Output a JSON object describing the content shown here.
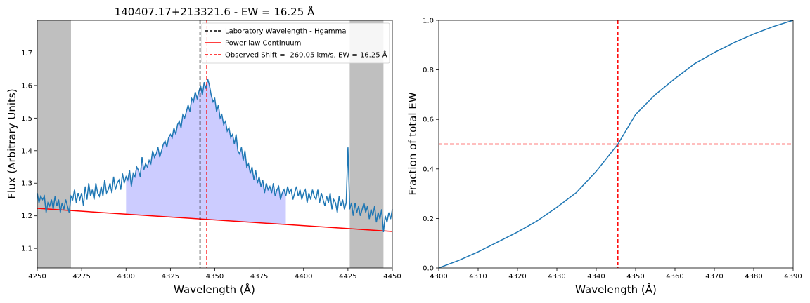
{
  "chart_data": [
    {
      "type": "line",
      "title": "140407.17+213321.6 - EW = 16.25 Å",
      "xlabel": "Wavelength (Å)",
      "ylabel": "Flux (Arbitrary Units)",
      "xlim": [
        4250,
        4450
      ],
      "ylim": [
        1.04,
        1.8
      ],
      "xticks": [
        4250,
        4275,
        4300,
        4325,
        4350,
        4375,
        4400,
        4425,
        4450
      ],
      "yticks": [
        1.1,
        1.2,
        1.3,
        1.4,
        1.5,
        1.6,
        1.7
      ],
      "grid": false,
      "legend_position": "top-right",
      "continuum_windows": [
        [
          4250,
          4269
        ],
        [
          4426,
          4445
        ]
      ],
      "shaded_region": [
        4300,
        4390
      ],
      "vlines": [
        {
          "x": 4341.7,
          "color": "#000000",
          "style": "dashed"
        },
        {
          "x": 4345.5,
          "color": "#ff0000",
          "style": "dashed"
        }
      ],
      "continuum_line": {
        "x": [
          4250,
          4450
        ],
        "y": [
          1.223,
          1.152
        ],
        "color": "#ff0000"
      },
      "spectrum": {
        "color": "#1f77b4",
        "x": [
          4250,
          4251,
          4252,
          4253,
          4254,
          4255,
          4256,
          4257,
          4258,
          4259,
          4260,
          4261,
          4262,
          4263,
          4264,
          4265,
          4266,
          4267,
          4268,
          4269,
          4270,
          4271,
          4272,
          4273,
          4274,
          4275,
          4276,
          4277,
          4278,
          4279,
          4280,
          4281,
          4282,
          4283,
          4284,
          4285,
          4286,
          4287,
          4288,
          4289,
          4290,
          4291,
          4292,
          4293,
          4294,
          4295,
          4296,
          4297,
          4298,
          4299,
          4300,
          4301,
          4302,
          4303,
          4304,
          4305,
          4306,
          4307,
          4308,
          4309,
          4310,
          4311,
          4312,
          4313,
          4314,
          4315,
          4316,
          4317,
          4318,
          4319,
          4320,
          4321,
          4322,
          4323,
          4324,
          4325,
          4326,
          4327,
          4328,
          4329,
          4330,
          4331,
          4332,
          4333,
          4334,
          4335,
          4336,
          4337,
          4338,
          4339,
          4340,
          4341,
          4342,
          4343,
          4344,
          4345,
          4346,
          4347,
          4348,
          4349,
          4350,
          4351,
          4352,
          4353,
          4354,
          4355,
          4356,
          4357,
          4358,
          4359,
          4360,
          4361,
          4362,
          4363,
          4364,
          4365,
          4366,
          4367,
          4368,
          4369,
          4370,
          4371,
          4372,
          4373,
          4374,
          4375,
          4376,
          4377,
          4378,
          4379,
          4380,
          4381,
          4382,
          4383,
          4384,
          4385,
          4386,
          4387,
          4388,
          4389,
          4390,
          4391,
          4392,
          4393,
          4394,
          4395,
          4396,
          4397,
          4398,
          4399,
          4400,
          4401,
          4402,
          4403,
          4404,
          4405,
          4406,
          4407,
          4408,
          4409,
          4410,
          4411,
          4412,
          4413,
          4414,
          4415,
          4416,
          4417,
          4418,
          4419,
          4420,
          4421,
          4422,
          4423,
          4424,
          4425,
          4426,
          4427,
          4428,
          4429,
          4430,
          4431,
          4432,
          4433,
          4434,
          4435,
          4436,
          4437,
          4438,
          4439,
          4440,
          4441,
          4442,
          4443,
          4444,
          4445,
          4446,
          4447,
          4448,
          4449,
          4450
        ],
        "y": [
          1.27,
          1.24,
          1.26,
          1.25,
          1.26,
          1.21,
          1.24,
          1.23,
          1.25,
          1.22,
          1.26,
          1.23,
          1.25,
          1.21,
          1.24,
          1.22,
          1.25,
          1.23,
          1.21,
          1.26,
          1.25,
          1.28,
          1.24,
          1.27,
          1.25,
          1.27,
          1.23,
          1.29,
          1.25,
          1.3,
          1.26,
          1.28,
          1.25,
          1.3,
          1.27,
          1.26,
          1.29,
          1.26,
          1.31,
          1.27,
          1.28,
          1.3,
          1.27,
          1.32,
          1.28,
          1.3,
          1.31,
          1.28,
          1.33,
          1.3,
          1.32,
          1.31,
          1.34,
          1.29,
          1.33,
          1.32,
          1.35,
          1.34,
          1.32,
          1.38,
          1.34,
          1.36,
          1.35,
          1.37,
          1.36,
          1.4,
          1.38,
          1.39,
          1.41,
          1.38,
          1.4,
          1.42,
          1.43,
          1.41,
          1.44,
          1.45,
          1.44,
          1.47,
          1.45,
          1.48,
          1.49,
          1.47,
          1.51,
          1.5,
          1.52,
          1.54,
          1.52,
          1.56,
          1.55,
          1.58,
          1.56,
          1.58,
          1.6,
          1.57,
          1.61,
          1.59,
          1.62,
          1.6,
          1.57,
          1.55,
          1.56,
          1.52,
          1.54,
          1.5,
          1.51,
          1.48,
          1.49,
          1.46,
          1.47,
          1.44,
          1.45,
          1.42,
          1.45,
          1.4,
          1.39,
          1.41,
          1.37,
          1.4,
          1.35,
          1.36,
          1.33,
          1.35,
          1.31,
          1.34,
          1.3,
          1.32,
          1.29,
          1.31,
          1.27,
          1.3,
          1.28,
          1.29,
          1.27,
          1.3,
          1.26,
          1.28,
          1.29,
          1.25,
          1.27,
          1.28,
          1.26,
          1.29,
          1.27,
          1.28,
          1.25,
          1.27,
          1.29,
          1.26,
          1.28,
          1.25,
          1.27,
          1.28,
          1.24,
          1.27,
          1.25,
          1.28,
          1.26,
          1.25,
          1.28,
          1.24,
          1.27,
          1.25,
          1.23,
          1.26,
          1.24,
          1.27,
          1.22,
          1.25,
          1.24,
          1.21,
          1.26,
          1.23,
          1.25,
          1.22,
          1.24,
          1.41,
          1.22,
          1.24,
          1.2,
          1.24,
          1.21,
          1.23,
          1.2,
          1.22,
          1.24,
          1.21,
          1.23,
          1.19,
          1.22,
          1.2,
          1.23,
          1.18,
          1.21,
          1.19,
          1.22,
          1.15,
          1.2,
          1.18,
          1.21,
          1.19,
          1.22
        ]
      },
      "legend": [
        {
          "label": "Laboratory Wavelength - Hgamma",
          "color": "#000000",
          "style": "dashed"
        },
        {
          "label": "Power-law Continuum",
          "color": "#ff0000",
          "style": "solid"
        },
        {
          "label": "Observed Shift = -269.05 km/s, EW = 16.25 Å",
          "color": "#ff0000",
          "style": "dashed"
        }
      ]
    },
    {
      "type": "line",
      "title": "",
      "xlabel": "Wavelength (Å)",
      "ylabel": "Fraction of total EW",
      "xlim": [
        4300,
        4390
      ],
      "ylim": [
        0.0,
        1.0
      ],
      "xticks": [
        4300,
        4310,
        4320,
        4330,
        4340,
        4350,
        4360,
        4370,
        4380,
        4390
      ],
      "yticks": [
        0.0,
        0.2,
        0.4,
        0.6,
        0.8,
        1.0
      ],
      "grid": false,
      "series": [
        {
          "color": "#1f77b4",
          "x": [
            4300,
            4305,
            4310,
            4315,
            4320,
            4325,
            4330,
            4335,
            4340,
            4345.5,
            4350,
            4355,
            4360,
            4365,
            4370,
            4375,
            4380,
            4385,
            4390
          ],
          "y": [
            0.0,
            0.03,
            0.065,
            0.105,
            0.145,
            0.19,
            0.245,
            0.305,
            0.39,
            0.5,
            0.62,
            0.7,
            0.765,
            0.825,
            0.87,
            0.91,
            0.945,
            0.975,
            1.0
          ]
        }
      ],
      "hline": {
        "y": 0.5,
        "color": "#ff0000",
        "style": "dashed"
      },
      "vline": {
        "x": 4345.5,
        "color": "#ff0000",
        "style": "dashed"
      }
    }
  ]
}
